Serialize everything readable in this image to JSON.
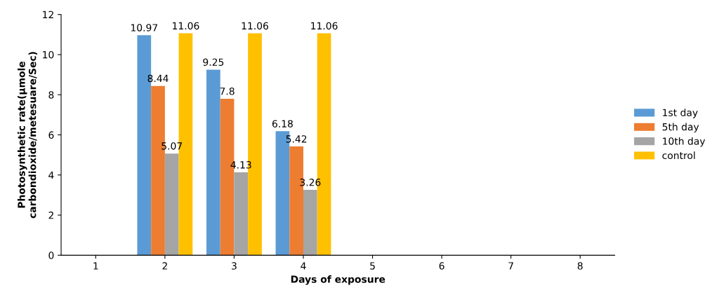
{
  "chart_data": {
    "type": "bar",
    "xlabel": "Days of exposure",
    "ylabel": "Photosynthetic rate(µmole\ncarbondioxide/metesuare/Sec)",
    "categories": [
      "1",
      "2",
      "3",
      "4",
      "5",
      "6",
      "7",
      "8"
    ],
    "series": [
      {
        "name": "1st day",
        "color": "#5b9bd5",
        "values": [
          null,
          10.97,
          9.25,
          6.18,
          null,
          null,
          null,
          null
        ]
      },
      {
        "name": "5th day",
        "color": "#ed7d31",
        "values": [
          null,
          8.44,
          7.8,
          5.42,
          null,
          null,
          null,
          null
        ]
      },
      {
        "name": "10th day",
        "color": "#a5a5a5",
        "values": [
          null,
          5.07,
          4.13,
          3.26,
          null,
          null,
          null,
          null
        ]
      },
      {
        "name": "control",
        "color": "#ffc000",
        "values": [
          null,
          11.06,
          11.06,
          11.06,
          null,
          null,
          null,
          null
        ]
      }
    ],
    "ylim": [
      0,
      12
    ],
    "yticks": [
      0,
      2,
      4,
      6,
      8,
      10,
      12
    ],
    "data_labels": true,
    "legend": "right",
    "grid": false
  }
}
